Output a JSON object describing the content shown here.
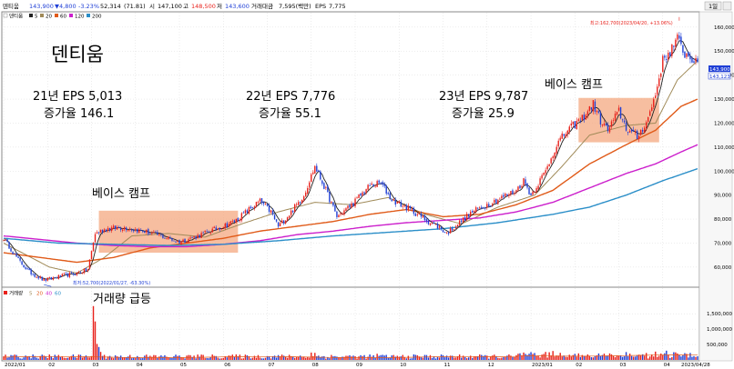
{
  "header": {
    "ticker": "덴티움",
    "price": "143,900",
    "change": "▼4,800",
    "change_pct": "-3.23%",
    "ma_period": "52,314",
    "ma_val": "(71.81)",
    "open_label": "시",
    "open": "147,100",
    "high_label": "고",
    "high": "148,500",
    "low_label": "저",
    "low": "143,600",
    "trade_value_label": "거래대금",
    "trade_value": "7,595(백만)",
    "eps_label": "EPS",
    "eps": "7,775",
    "timeframe_btn": "1일",
    "price_legend": [
      "덴티움",
      "5",
      "20",
      "60",
      "120",
      "200"
    ],
    "volume_legend": [
      "거래량",
      "5",
      "20",
      "40",
      "60"
    ]
  },
  "annotations": {
    "title": "덴티움",
    "eps21_line1": "21년 EPS 5,013",
    "eps21_line2": "증가율 146.1",
    "eps22_line1": "22년 EPS 7,776",
    "eps22_line2": "증가율 55.1",
    "eps23_line1": "23년 EPS 9,787",
    "eps23_line2": "증가율 25.9",
    "base_camp_1": "베이스 캠프",
    "base_camp_2": "베이스 캠프",
    "volume_surge": "거래량 급등",
    "high_marker": "최고:162,700(2023/04/20, +13.06%)",
    "low_marker": "최저:52,700(2022/01/27, -63.30%)"
  },
  "price_tags": {
    "current": "143,900",
    "secondary": "143,123"
  },
  "colors": {
    "up": "#e8211b",
    "down": "#1f3fd6",
    "ma5": "#222222",
    "ma20": "#a08a58",
    "ma60": "#e05a18",
    "ma120": "#cc1fcc",
    "ma200": "#2a8ec8",
    "base_box": "#f4a57c",
    "bg": "#ffffff",
    "grid": "#d0d0d0"
  },
  "chart_data": [
    {
      "type": "candlestick",
      "title": "덴티움",
      "y_ticks": [
        60000,
        70000,
        80000,
        90000,
        100000,
        110000,
        120000,
        130000,
        140000,
        150000,
        160000
      ],
      "y_tick_labels": [
        "60,000",
        "70,000",
        "80,000",
        "90,000",
        "100,000",
        "110,000",
        "120,000",
        "130,000",
        "140,000",
        "150,000",
        "160,000"
      ],
      "ylim": [
        52000,
        166000
      ],
      "x_labels": [
        "2022/01",
        "02",
        "03",
        "04",
        "05",
        "06",
        "07",
        "08",
        "09",
        "10",
        "11",
        "12",
        "2023/01",
        "02",
        "03",
        "04",
        "2023/04/28"
      ],
      "x_label_days": [
        0,
        24,
        48,
        72,
        96,
        120,
        144,
        168,
        192,
        216,
        240,
        264,
        288,
        312,
        336,
        360,
        378
      ],
      "days_total": 380,
      "price_knots": [
        [
          0,
          72000
        ],
        [
          8,
          63000
        ],
        [
          14,
          58000
        ],
        [
          22,
          54500
        ],
        [
          30,
          56000
        ],
        [
          40,
          57500
        ],
        [
          46,
          59000
        ],
        [
          50,
          74000
        ],
        [
          56,
          76000
        ],
        [
          66,
          76500
        ],
        [
          76,
          75000
        ],
        [
          86,
          73000
        ],
        [
          96,
          70500
        ],
        [
          106,
          73000
        ],
        [
          116,
          76000
        ],
        [
          126,
          79000
        ],
        [
          134,
          84000
        ],
        [
          140,
          87500
        ],
        [
          146,
          83000
        ],
        [
          150,
          77000
        ],
        [
          156,
          82000
        ],
        [
          164,
          90000
        ],
        [
          170,
          102000
        ],
        [
          176,
          92000
        ],
        [
          182,
          81000
        ],
        [
          190,
          86000
        ],
        [
          200,
          94000
        ],
        [
          206,
          95000
        ],
        [
          212,
          88000
        ],
        [
          222,
          84000
        ],
        [
          232,
          79000
        ],
        [
          238,
          76500
        ],
        [
          242,
          74000
        ],
        [
          248,
          78000
        ],
        [
          256,
          83000
        ],
        [
          264,
          86000
        ],
        [
          272,
          89000
        ],
        [
          280,
          92000
        ],
        [
          284,
          96000
        ],
        [
          288,
          90000
        ],
        [
          296,
          100000
        ],
        [
          302,
          111000
        ],
        [
          308,
          117000
        ],
        [
          316,
          122000
        ],
        [
          322,
          128000
        ],
        [
          326,
          121000
        ],
        [
          330,
          117000
        ],
        [
          336,
          125000
        ],
        [
          340,
          118000
        ],
        [
          346,
          114000
        ],
        [
          352,
          122000
        ],
        [
          356,
          132000
        ],
        [
          360,
          146000
        ],
        [
          364,
          150000
        ],
        [
          368,
          155000
        ],
        [
          372,
          149000
        ],
        [
          376,
          147000
        ],
        [
          379,
          143900
        ]
      ],
      "ma_knots": {
        "ma20": [
          [
            0,
            70000
          ],
          [
            10,
            66000
          ],
          [
            25,
            60000
          ],
          [
            40,
            57500
          ],
          [
            55,
            64000
          ],
          [
            70,
            73000
          ],
          [
            90,
            74000
          ],
          [
            110,
            72500
          ],
          [
            130,
            78000
          ],
          [
            150,
            83000
          ],
          [
            170,
            87000
          ],
          [
            190,
            86000
          ],
          [
            210,
            89000
          ],
          [
            230,
            82000
          ],
          [
            250,
            78000
          ],
          [
            270,
            85000
          ],
          [
            290,
            90000
          ],
          [
            305,
            102000
          ],
          [
            320,
            115000
          ],
          [
            340,
            119000
          ],
          [
            356,
            120000
          ],
          [
            368,
            138000
          ],
          [
            379,
            146000
          ]
        ],
        "ma60": [
          [
            0,
            66000
          ],
          [
            20,
            64000
          ],
          [
            40,
            62000
          ],
          [
            60,
            64000
          ],
          [
            80,
            68000
          ],
          [
            100,
            70000
          ],
          [
            120,
            72000
          ],
          [
            140,
            75000
          ],
          [
            160,
            77000
          ],
          [
            180,
            79000
          ],
          [
            200,
            82000
          ],
          [
            220,
            84000
          ],
          [
            240,
            81000
          ],
          [
            260,
            82000
          ],
          [
            280,
            86000
          ],
          [
            300,
            92000
          ],
          [
            320,
            103000
          ],
          [
            340,
            111000
          ],
          [
            356,
            117000
          ],
          [
            370,
            127000
          ],
          [
            379,
            130000
          ]
        ],
        "ma120": [
          [
            0,
            73000
          ],
          [
            20,
            71500
          ],
          [
            40,
            70000
          ],
          [
            60,
            69000
          ],
          [
            80,
            68500
          ],
          [
            100,
            68500
          ],
          [
            120,
            69500
          ],
          [
            140,
            71000
          ],
          [
            160,
            73500
          ],
          [
            180,
            75000
          ],
          [
            200,
            77000
          ],
          [
            220,
            78500
          ],
          [
            240,
            79500
          ],
          [
            260,
            80500
          ],
          [
            280,
            83000
          ],
          [
            300,
            87000
          ],
          [
            320,
            93000
          ],
          [
            340,
            99000
          ],
          [
            356,
            103000
          ],
          [
            370,
            108000
          ],
          [
            379,
            111000
          ]
        ],
        "ma200": [
          [
            0,
            72000
          ],
          [
            30,
            70000
          ],
          [
            60,
            69500
          ],
          [
            90,
            69000
          ],
          [
            120,
            69500
          ],
          [
            150,
            71000
          ],
          [
            180,
            73000
          ],
          [
            210,
            74500
          ],
          [
            240,
            76000
          ],
          [
            270,
            78500
          ],
          [
            300,
            82000
          ],
          [
            320,
            85000
          ],
          [
            340,
            90000
          ],
          [
            360,
            96000
          ],
          [
            379,
            101000
          ]
        ]
      },
      "base_boxes": [
        {
          "day_start": 52,
          "day_end": 128,
          "low": 66000,
          "high": 83500
        },
        {
          "day_start": 314,
          "day_end": 358,
          "low": 112000,
          "high": 130500
        }
      ],
      "extremes": {
        "high": {
          "day": 369,
          "price": 162700,
          "label": "최고:162,700(2023/04/20, +13.06%)"
        },
        "low": {
          "day": 22,
          "price": 52700,
          "label": "최저:52,700(2022/01/27, -63.30%)"
        }
      }
    },
    {
      "type": "bar",
      "title": "거래량",
      "y_ticks": [
        500000,
        1000000,
        1500000
      ],
      "y_tick_labels": [
        "500,000",
        "1,000,000",
        "1,500,000"
      ],
      "ylim": [
        0,
        1950000
      ],
      "spikes": [
        [
          49,
          1750000
        ],
        [
          50,
          1250000
        ],
        [
          51,
          520000
        ],
        [
          52,
          420000
        ],
        [
          53,
          260000
        ],
        [
          168,
          240000
        ],
        [
          170,
          230000
        ],
        [
          204,
          200000
        ],
        [
          284,
          240000
        ],
        [
          296,
          260000
        ],
        [
          300,
          290000
        ],
        [
          304,
          230000
        ],
        [
          356,
          270000
        ],
        [
          362,
          300000
        ],
        [
          366,
          250000
        ],
        [
          372,
          220000
        ]
      ]
    }
  ]
}
